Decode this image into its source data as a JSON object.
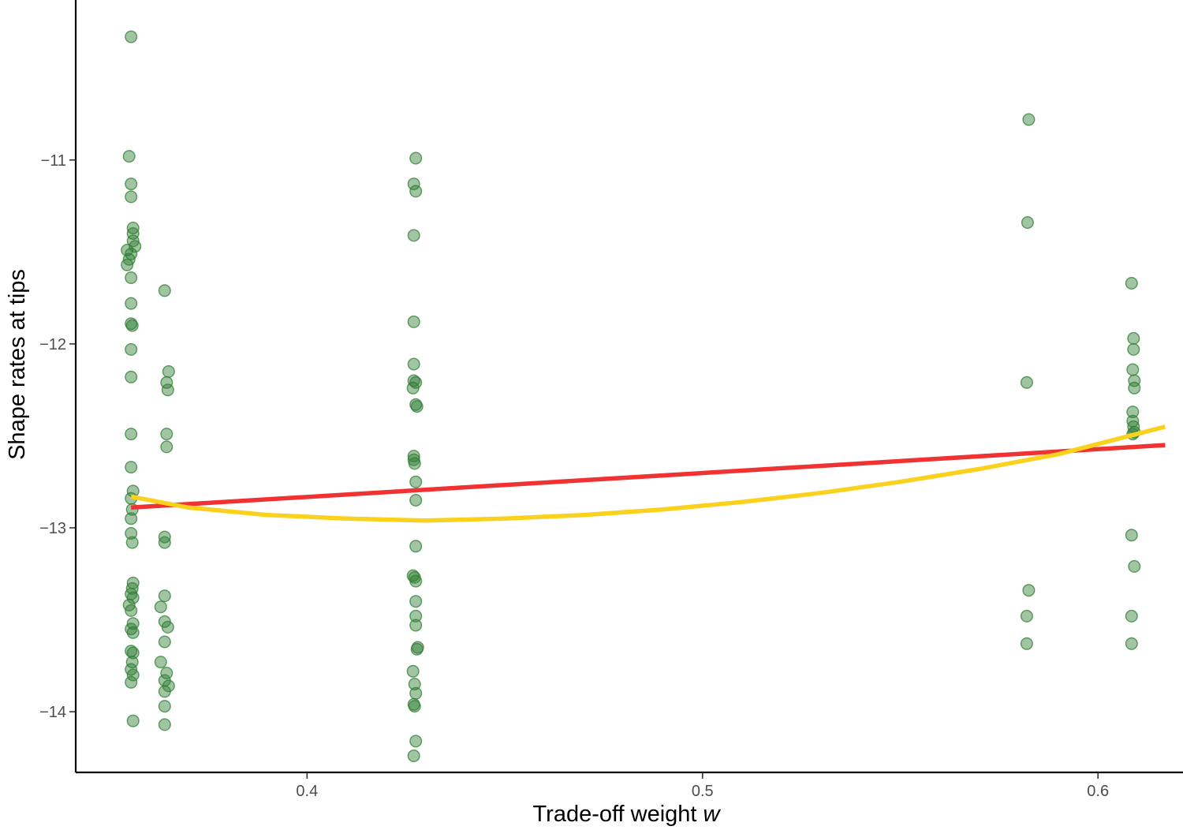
{
  "chart_data": {
    "type": "scatter",
    "xlabel": "Trade-off weight",
    "xlabel_var": "w",
    "ylabel": "Shape rates at tips",
    "xlim": [
      0.3415,
      0.6215
    ],
    "ylim": [
      -14.33,
      -10.13
    ],
    "x_ticks": [
      {
        "value": 0.4,
        "label": "0.4"
      },
      {
        "value": 0.5,
        "label": "0.5"
      },
      {
        "value": 0.6,
        "label": "0.6"
      }
    ],
    "y_ticks": [
      {
        "value": -11,
        "label": "−11"
      },
      {
        "value": -12,
        "label": "−12"
      },
      {
        "value": -13,
        "label": "−13"
      },
      {
        "value": -14,
        "label": "−14"
      }
    ],
    "grid": false,
    "points": {
      "color": "#2e7d32",
      "opacity": 0.45,
      "data": [
        [
          0.3555,
          -10.33
        ],
        [
          0.355,
          -10.98
        ],
        [
          0.3555,
          -11.13
        ],
        [
          0.3555,
          -11.2
        ],
        [
          0.356,
          -11.37
        ],
        [
          0.356,
          -11.4
        ],
        [
          0.356,
          -11.44
        ],
        [
          0.3565,
          -11.47
        ],
        [
          0.3545,
          -11.49
        ],
        [
          0.3555,
          -11.51
        ],
        [
          0.355,
          -11.54
        ],
        [
          0.3545,
          -11.57
        ],
        [
          0.3555,
          -11.64
        ],
        [
          0.3555,
          -11.78
        ],
        [
          0.3555,
          -11.89
        ],
        [
          0.3558,
          -11.9
        ],
        [
          0.3555,
          -12.03
        ],
        [
          0.3555,
          -12.18
        ],
        [
          0.3555,
          -12.49
        ],
        [
          0.3555,
          -12.67
        ],
        [
          0.356,
          -12.8
        ],
        [
          0.3555,
          -12.84
        ],
        [
          0.3558,
          -12.9
        ],
        [
          0.3555,
          -12.95
        ],
        [
          0.3555,
          -13.03
        ],
        [
          0.3558,
          -13.08
        ],
        [
          0.356,
          -13.3
        ],
        [
          0.3558,
          -13.33
        ],
        [
          0.3555,
          -13.36
        ],
        [
          0.356,
          -13.38
        ],
        [
          0.355,
          -13.42
        ],
        [
          0.3555,
          -13.45
        ],
        [
          0.356,
          -13.52
        ],
        [
          0.3555,
          -13.55
        ],
        [
          0.356,
          -13.57
        ],
        [
          0.3555,
          -13.67
        ],
        [
          0.356,
          -13.68
        ],
        [
          0.3558,
          -13.73
        ],
        [
          0.3555,
          -13.77
        ],
        [
          0.356,
          -13.8
        ],
        [
          0.3555,
          -13.84
        ],
        [
          0.356,
          -14.05
        ],
        [
          0.364,
          -11.71
        ],
        [
          0.365,
          -12.15
        ],
        [
          0.3645,
          -12.21
        ],
        [
          0.3648,
          -12.25
        ],
        [
          0.3645,
          -12.49
        ],
        [
          0.3645,
          -12.56
        ],
        [
          0.364,
          -13.05
        ],
        [
          0.364,
          -13.08
        ],
        [
          0.364,
          -13.37
        ],
        [
          0.363,
          -13.43
        ],
        [
          0.364,
          -13.51
        ],
        [
          0.3648,
          -13.54
        ],
        [
          0.364,
          -13.62
        ],
        [
          0.363,
          -13.73
        ],
        [
          0.3645,
          -13.79
        ],
        [
          0.364,
          -13.83
        ],
        [
          0.365,
          -13.86
        ],
        [
          0.364,
          -13.89
        ],
        [
          0.364,
          -13.97
        ],
        [
          0.364,
          -14.07
        ],
        [
          0.4275,
          -10.99
        ],
        [
          0.427,
          -11.13
        ],
        [
          0.4275,
          -11.17
        ],
        [
          0.427,
          -11.41
        ],
        [
          0.427,
          -11.88
        ],
        [
          0.427,
          -12.11
        ],
        [
          0.427,
          -12.2
        ],
        [
          0.4275,
          -12.21
        ],
        [
          0.4268,
          -12.24
        ],
        [
          0.4275,
          -12.33
        ],
        [
          0.4278,
          -12.34
        ],
        [
          0.427,
          -12.61
        ],
        [
          0.427,
          -12.63
        ],
        [
          0.4272,
          -12.65
        ],
        [
          0.4275,
          -12.75
        ],
        [
          0.4275,
          -12.85
        ],
        [
          0.4275,
          -13.1
        ],
        [
          0.4268,
          -13.26
        ],
        [
          0.4272,
          -13.27
        ],
        [
          0.4275,
          -13.29
        ],
        [
          0.4275,
          -13.4
        ],
        [
          0.4275,
          -13.48
        ],
        [
          0.4275,
          -13.53
        ],
        [
          0.428,
          -13.65
        ],
        [
          0.4278,
          -13.66
        ],
        [
          0.4268,
          -13.78
        ],
        [
          0.4272,
          -13.85
        ],
        [
          0.4275,
          -13.9
        ],
        [
          0.427,
          -13.96
        ],
        [
          0.4272,
          -13.97
        ],
        [
          0.4275,
          -14.16
        ],
        [
          0.427,
          -14.24
        ],
        [
          0.5825,
          -10.78
        ],
        [
          0.5822,
          -11.34
        ],
        [
          0.582,
          -12.21
        ],
        [
          0.5825,
          -13.34
        ],
        [
          0.582,
          -13.48
        ],
        [
          0.582,
          -13.63
        ],
        [
          0.6085,
          -11.67
        ],
        [
          0.609,
          -11.97
        ],
        [
          0.609,
          -12.03
        ],
        [
          0.6088,
          -12.14
        ],
        [
          0.6092,
          -12.2
        ],
        [
          0.6092,
          -12.24
        ],
        [
          0.6088,
          -12.37
        ],
        [
          0.6088,
          -12.42
        ],
        [
          0.609,
          -12.45
        ],
        [
          0.6088,
          -12.49
        ],
        [
          0.6092,
          -12.48
        ],
        [
          0.6085,
          -13.04
        ],
        [
          0.6092,
          -13.21
        ],
        [
          0.6085,
          -13.48
        ],
        [
          0.6085,
          -13.63
        ]
      ]
    },
    "series": [
      {
        "type": "line",
        "color": "#f03232",
        "data": [
          [
            0.3555,
            -12.89
          ],
          [
            0.617,
            -12.55
          ]
        ]
      },
      {
        "type": "line",
        "color": "#fad21e",
        "data": [
          [
            0.3555,
            -12.83
          ],
          [
            0.37,
            -12.89
          ],
          [
            0.39,
            -12.93
          ],
          [
            0.41,
            -12.95
          ],
          [
            0.43,
            -12.96
          ],
          [
            0.45,
            -12.95
          ],
          [
            0.47,
            -12.93
          ],
          [
            0.49,
            -12.9
          ],
          [
            0.51,
            -12.86
          ],
          [
            0.53,
            -12.81
          ],
          [
            0.55,
            -12.75
          ],
          [
            0.57,
            -12.68
          ],
          [
            0.59,
            -12.6
          ],
          [
            0.617,
            -12.45
          ]
        ]
      }
    ]
  }
}
